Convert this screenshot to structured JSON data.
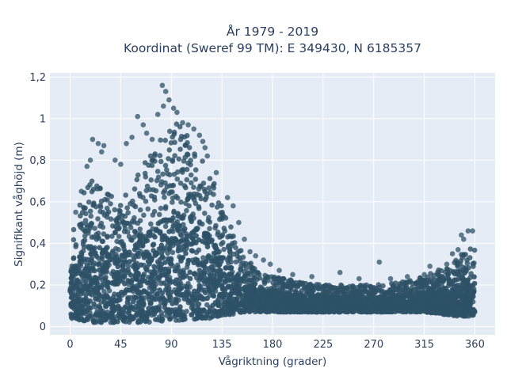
{
  "chart_data": {
    "type": "scatter",
    "title": [
      "År 1979 - 2019",
      "Koordinat (Sweref 99 TM): E 349430, N 6185357"
    ],
    "xlabel": "Vågriktning (grader)",
    "ylabel": "Signifikant våghöjd (m)",
    "xlim": [
      -18,
      378
    ],
    "ylim": [
      -0.04,
      1.22
    ],
    "x_ticks": [
      0,
      45,
      90,
      135,
      180,
      225,
      270,
      315,
      360
    ],
    "x_tick_labels": [
      "0",
      "45",
      "90",
      "135",
      "180",
      "225",
      "270",
      "315",
      "360"
    ],
    "y_ticks": [
      0,
      0.2,
      0.4,
      0.6,
      0.8,
      1,
      1.2
    ],
    "y_tick_labels": [
      "0",
      "0,2",
      "0,4",
      "0,6",
      "0,8",
      "1",
      "1,2"
    ],
    "grid": true,
    "legend": "none",
    "marker_color": "#2e5167",
    "background_color": "#e5ecf6",
    "envelope": {
      "direction": [
        0,
        10,
        20,
        30,
        45,
        55,
        65,
        75,
        85,
        95,
        105,
        115,
        125,
        135,
        145,
        155,
        165,
        180,
        200,
        225,
        250,
        270,
        290,
        315,
        330,
        345,
        352,
        360
      ],
      "upper_height": [
        0.45,
        0.62,
        0.72,
        0.68,
        0.6,
        0.68,
        0.78,
        0.86,
        0.95,
        0.98,
        0.93,
        0.85,
        0.75,
        0.6,
        0.45,
        0.34,
        0.28,
        0.24,
        0.22,
        0.2,
        0.2,
        0.2,
        0.21,
        0.24,
        0.28,
        0.33,
        0.38,
        0.4
      ],
      "lower_height": [
        0.04,
        0.03,
        0.02,
        0.02,
        0.02,
        0.02,
        0.02,
        0.02,
        0.03,
        0.03,
        0.03,
        0.04,
        0.04,
        0.05,
        0.06,
        0.07,
        0.07,
        0.07,
        0.07,
        0.07,
        0.07,
        0.07,
        0.07,
        0.07,
        0.06,
        0.05,
        0.05,
        0.05
      ]
    },
    "outliers": [
      {
        "x": 82,
        "y": 1.16
      },
      {
        "x": 85,
        "y": 1.13
      },
      {
        "x": 88,
        "y": 1.09
      },
      {
        "x": 92,
        "y": 1.05
      },
      {
        "x": 95,
        "y": 1.03
      },
      {
        "x": 83,
        "y": 1.06
      },
      {
        "x": 78,
        "y": 1.02
      },
      {
        "x": 100,
        "y": 0.98
      },
      {
        "x": 60,
        "y": 1.01
      },
      {
        "x": 65,
        "y": 0.97
      },
      {
        "x": 68,
        "y": 0.93
      },
      {
        "x": 55,
        "y": 0.91
      },
      {
        "x": 50,
        "y": 0.88
      },
      {
        "x": 20,
        "y": 0.9
      },
      {
        "x": 25,
        "y": 0.88
      },
      {
        "x": 30,
        "y": 0.87
      },
      {
        "x": 28,
        "y": 0.84
      },
      {
        "x": 18,
        "y": 0.8
      },
      {
        "x": 15,
        "y": 0.77
      },
      {
        "x": 110,
        "y": 0.95
      },
      {
        "x": 115,
        "y": 0.92
      },
      {
        "x": 118,
        "y": 0.89
      },
      {
        "x": 120,
        "y": 0.86
      },
      {
        "x": 122,
        "y": 0.82
      },
      {
        "x": 130,
        "y": 0.74
      },
      {
        "x": 140,
        "y": 0.62
      },
      {
        "x": 145,
        "y": 0.58
      },
      {
        "x": 150,
        "y": 0.5
      },
      {
        "x": 155,
        "y": 0.42
      },
      {
        "x": 160,
        "y": 0.36
      },
      {
        "x": 165,
        "y": 0.34
      },
      {
        "x": 172,
        "y": 0.32
      },
      {
        "x": 178,
        "y": 0.3
      },
      {
        "x": 186,
        "y": 0.27
      },
      {
        "x": 198,
        "y": 0.25
      },
      {
        "x": 215,
        "y": 0.24
      },
      {
        "x": 240,
        "y": 0.26
      },
      {
        "x": 257,
        "y": 0.23
      },
      {
        "x": 275,
        "y": 0.31
      },
      {
        "x": 285,
        "y": 0.23
      },
      {
        "x": 300,
        "y": 0.24
      },
      {
        "x": 315,
        "y": 0.25
      },
      {
        "x": 320,
        "y": 0.29
      },
      {
        "x": 335,
        "y": 0.3
      },
      {
        "x": 340,
        "y": 0.35
      },
      {
        "x": 345,
        "y": 0.37
      },
      {
        "x": 350,
        "y": 0.42
      },
      {
        "x": 354,
        "y": 0.46
      },
      {
        "x": 358,
        "y": 0.46
      },
      {
        "x": 348,
        "y": 0.44
      },
      {
        "x": 10,
        "y": 0.65
      },
      {
        "x": 5,
        "y": 0.55
      },
      {
        "x": 40,
        "y": 0.8
      },
      {
        "x": 45,
        "y": 0.78
      },
      {
        "x": 73,
        "y": 0.9
      },
      {
        "x": 105,
        "y": 0.97
      }
    ]
  }
}
